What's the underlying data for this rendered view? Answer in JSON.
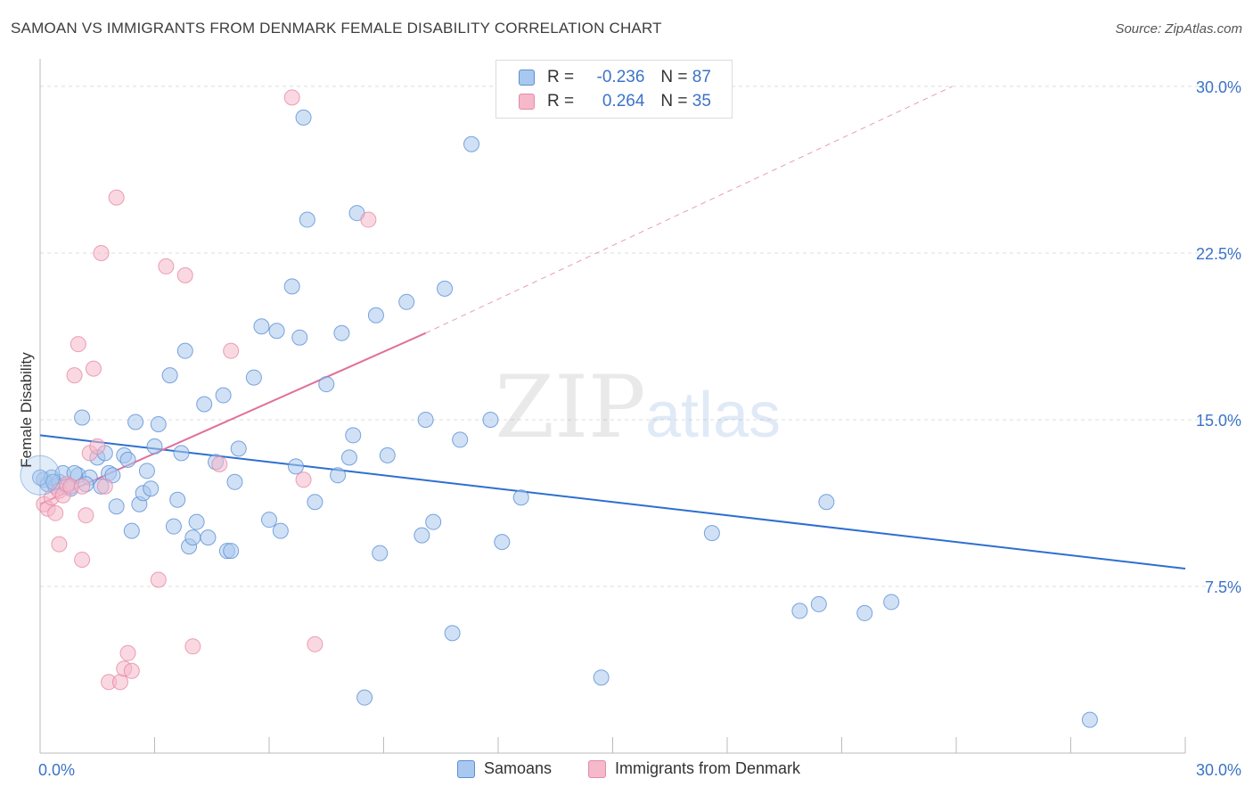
{
  "title": "SAMOAN VS IMMIGRANTS FROM DENMARK FEMALE DISABILITY CORRELATION CHART",
  "source": "Source: ZipAtlas.com",
  "watermark": {
    "zip": "ZIP",
    "atlas": "atlas"
  },
  "legend_top": {
    "rows": [
      {
        "r_label": "R =",
        "r_value": "-0.236",
        "n_label": "N =",
        "n_value": "87"
      },
      {
        "r_label": "R =",
        "r_value": "0.264",
        "n_label": "N =",
        "n_value": "35"
      }
    ]
  },
  "legend_bottom": {
    "series1": "Samoans",
    "series2": "Immigrants from Denmark"
  },
  "colors": {
    "samoans_fill": "#a9c8ef",
    "samoans_stroke": "#5b8fd4",
    "samoans_line": "#2e6fcf",
    "denmark_fill": "#f6b8cb",
    "denmark_stroke": "#e58aa6",
    "denmark_line": "#e0709a",
    "tick_label": "#3b73c7",
    "grid": "#dddddd"
  },
  "chart_data": {
    "type": "scatter",
    "title": "SAMOAN VS IMMIGRANTS FROM DENMARK FEMALE DISABILITY CORRELATION CHART",
    "xlabel": "",
    "ylabel": "Female Disability",
    "xlim": [
      0,
      30
    ],
    "ylim": [
      0,
      31
    ],
    "x_tick_labels": [
      "0.0%",
      "30.0%"
    ],
    "y_ticks": [
      7.5,
      15.0,
      22.5,
      30.0
    ],
    "y_tick_labels": [
      "7.5%",
      "15.0%",
      "22.5%",
      "30.0%"
    ],
    "grid": true,
    "series": [
      {
        "name": "Samoans",
        "r": -0.236,
        "n": 87,
        "trend": {
          "x": [
            0,
            30
          ],
          "y": [
            14.3,
            8.3
          ]
        },
        "points": [
          [
            0.1,
            12.3
          ],
          [
            0.2,
            12.1
          ],
          [
            0.3,
            12.4
          ],
          [
            0.4,
            12.0
          ],
          [
            0.5,
            12.2
          ],
          [
            0.6,
            12.6
          ],
          [
            0.7,
            12.0
          ],
          [
            0.8,
            11.9
          ],
          [
            1.0,
            12.5
          ],
          [
            1.1,
            15.1
          ],
          [
            1.3,
            12.4
          ],
          [
            1.5,
            13.3
          ],
          [
            1.6,
            12.0
          ],
          [
            1.7,
            13.5
          ],
          [
            1.8,
            12.6
          ],
          [
            1.9,
            12.5
          ],
          [
            2.0,
            11.1
          ],
          [
            2.2,
            13.4
          ],
          [
            2.3,
            13.2
          ],
          [
            2.4,
            10.0
          ],
          [
            2.5,
            14.9
          ],
          [
            2.6,
            11.2
          ],
          [
            2.7,
            11.7
          ],
          [
            2.8,
            12.7
          ],
          [
            2.9,
            11.9
          ],
          [
            3.0,
            13.8
          ],
          [
            3.1,
            14.8
          ],
          [
            3.4,
            17.0
          ],
          [
            3.5,
            10.2
          ],
          [
            3.6,
            11.4
          ],
          [
            3.7,
            13.5
          ],
          [
            3.8,
            18.1
          ],
          [
            3.9,
            9.3
          ],
          [
            4.0,
            9.7
          ],
          [
            4.1,
            10.4
          ],
          [
            4.3,
            15.7
          ],
          [
            4.4,
            9.7
          ],
          [
            4.6,
            13.1
          ],
          [
            4.8,
            16.1
          ],
          [
            4.9,
            9.1
          ],
          [
            5.0,
            9.1
          ],
          [
            5.1,
            12.2
          ],
          [
            5.2,
            13.7
          ],
          [
            5.6,
            16.9
          ],
          [
            5.8,
            19.2
          ],
          [
            6.0,
            10.5
          ],
          [
            6.2,
            19.0
          ],
          [
            6.3,
            10.0
          ],
          [
            6.6,
            21.0
          ],
          [
            6.7,
            12.9
          ],
          [
            6.8,
            18.7
          ],
          [
            6.9,
            28.6
          ],
          [
            7.0,
            24.0
          ],
          [
            7.2,
            11.3
          ],
          [
            7.5,
            16.6
          ],
          [
            7.8,
            12.5
          ],
          [
            7.9,
            18.9
          ],
          [
            8.1,
            13.3
          ],
          [
            8.2,
            14.3
          ],
          [
            8.3,
            24.3
          ],
          [
            8.5,
            2.5
          ],
          [
            8.8,
            19.7
          ],
          [
            8.9,
            9.0
          ],
          [
            9.1,
            13.4
          ],
          [
            9.6,
            20.3
          ],
          [
            10.0,
            9.8
          ],
          [
            10.1,
            15.0
          ],
          [
            10.3,
            10.4
          ],
          [
            10.6,
            20.9
          ],
          [
            10.8,
            5.4
          ],
          [
            11.0,
            14.1
          ],
          [
            11.3,
            27.4
          ],
          [
            11.8,
            15.0
          ],
          [
            12.1,
            9.5
          ],
          [
            12.6,
            11.5
          ],
          [
            14.7,
            3.4
          ],
          [
            17.6,
            9.9
          ],
          [
            19.9,
            6.4
          ],
          [
            20.4,
            6.7
          ],
          [
            20.6,
            11.3
          ],
          [
            21.6,
            6.3
          ],
          [
            22.3,
            6.8
          ],
          [
            27.5,
            1.5
          ],
          [
            0.0,
            12.4
          ],
          [
            0.35,
            12.2
          ],
          [
            0.9,
            12.6
          ],
          [
            1.2,
            12.1
          ]
        ]
      },
      {
        "name": "Immigrants from Denmark",
        "r": 0.264,
        "n": 35,
        "trend": {
          "x": [
            0,
            10.1
          ],
          "y": [
            11.2,
            18.9
          ]
        },
        "trend_extension": {
          "x": [
            10.1,
            23.9
          ],
          "y": [
            18.9,
            30.0
          ]
        },
        "points": [
          [
            0.1,
            11.2
          ],
          [
            0.2,
            11.0
          ],
          [
            0.3,
            11.5
          ],
          [
            0.4,
            10.8
          ],
          [
            0.5,
            11.8
          ],
          [
            0.6,
            11.6
          ],
          [
            0.7,
            12.1
          ],
          [
            0.8,
            12.0
          ],
          [
            0.5,
            9.4
          ],
          [
            0.9,
            17.0
          ],
          [
            1.0,
            18.4
          ],
          [
            1.1,
            12.0
          ],
          [
            1.2,
            10.7
          ],
          [
            1.3,
            13.5
          ],
          [
            1.4,
            17.3
          ],
          [
            1.5,
            13.8
          ],
          [
            1.6,
            22.5
          ],
          [
            1.7,
            12.0
          ],
          [
            1.8,
            3.2
          ],
          [
            2.0,
            25.0
          ],
          [
            2.1,
            3.2
          ],
          [
            2.2,
            3.8
          ],
          [
            2.3,
            4.5
          ],
          [
            2.4,
            3.7
          ],
          [
            3.1,
            7.8
          ],
          [
            3.3,
            21.9
          ],
          [
            3.8,
            21.5
          ],
          [
            4.0,
            4.8
          ],
          [
            4.7,
            13.0
          ],
          [
            5.0,
            18.1
          ],
          [
            6.6,
            29.5
          ],
          [
            6.9,
            12.3
          ],
          [
            7.2,
            4.9
          ],
          [
            8.6,
            24.0
          ],
          [
            1.1,
            8.7
          ]
        ]
      }
    ]
  }
}
